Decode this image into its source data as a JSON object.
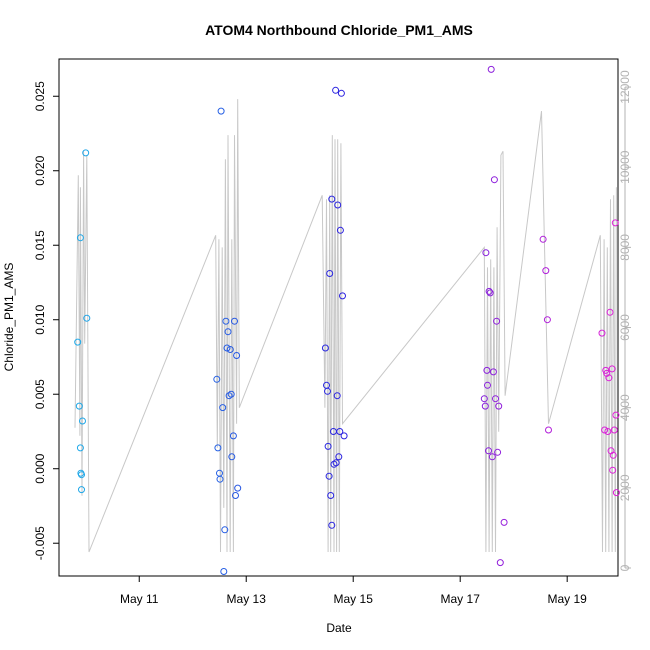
{
  "chart_data": {
    "type": "scatter",
    "title": "ATOM4 Northbound Chloride_PM1_AMS",
    "xlabel": "Date",
    "ylabel": "Chloride_PM1_AMS",
    "x_ticks": [
      "May 11",
      "May 13",
      "May 15",
      "May 17",
      "May 19"
    ],
    "x_tick_values": [
      11,
      13,
      15,
      17,
      19
    ],
    "xlim": [
      9.5,
      19.95
    ],
    "ylim": [
      -0.0072,
      0.0275
    ],
    "y_ticks": [
      -0.005,
      0.0,
      0.005,
      0.01,
      0.015,
      0.02,
      0.025
    ],
    "y_tick_labels": [
      "-0.005",
      "0.000",
      "0.005",
      "0.010",
      "0.015",
      "0.020",
      "0.025"
    ],
    "y2lim": [
      -200,
      12700
    ],
    "y2_ticks": [
      0,
      2000,
      4000,
      6000,
      8000,
      10000,
      12000
    ],
    "y2_tick_labels": [
      "0",
      "2000",
      "4000",
      "6000",
      "8000",
      "10000",
      "12000"
    ],
    "grid": false,
    "colors": {
      "line": "#c8c8c8",
      "right_axis": "#b3b3b3",
      "point_start": "#1ea9e8",
      "point_mid": "#2b1ee0",
      "point_end": "#e020d8"
    },
    "points": [
      [
        9.85,
        0.0085
      ],
      [
        9.88,
        0.0042
      ],
      [
        9.9,
        0.0155
      ],
      [
        9.9,
        0.0014
      ],
      [
        9.91,
        -0.0003
      ],
      [
        9.92,
        -0.0004
      ],
      [
        9.92,
        -0.0014
      ],
      [
        9.94,
        0.0032
      ],
      [
        10.0,
        0.0212
      ],
      [
        10.02,
        0.0101
      ],
      [
        12.45,
        0.006
      ],
      [
        12.47,
        0.0014
      ],
      [
        12.5,
        -0.0003
      ],
      [
        12.51,
        -0.0007
      ],
      [
        12.53,
        0.024
      ],
      [
        12.56,
        0.0041
      ],
      [
        12.58,
        -0.0069
      ],
      [
        12.6,
        -0.0041
      ],
      [
        12.62,
        0.0099
      ],
      [
        12.64,
        0.0081
      ],
      [
        12.66,
        0.0092
      ],
      [
        12.68,
        0.0049
      ],
      [
        12.7,
        0.008
      ],
      [
        12.72,
        0.005
      ],
      [
        12.73,
        0.0008
      ],
      [
        12.76,
        0.0022
      ],
      [
        12.78,
        0.0099
      ],
      [
        12.8,
        -0.0018
      ],
      [
        12.82,
        0.0076
      ],
      [
        12.84,
        -0.0013
      ],
      [
        14.48,
        0.0081
      ],
      [
        14.5,
        0.0056
      ],
      [
        14.52,
        0.0052
      ],
      [
        14.53,
        0.0015
      ],
      [
        14.55,
        -0.0005
      ],
      [
        14.56,
        0.0131
      ],
      [
        14.58,
        -0.0018
      ],
      [
        14.6,
        0.0181
      ],
      [
        14.6,
        -0.0038
      ],
      [
        14.63,
        0.0025
      ],
      [
        14.64,
        0.0003
      ],
      [
        14.67,
        0.0254
      ],
      [
        14.68,
        0.0004
      ],
      [
        14.7,
        0.0049
      ],
      [
        14.71,
        0.0177
      ],
      [
        14.73,
        0.0008
      ],
      [
        14.75,
        0.0025
      ],
      [
        14.76,
        0.016
      ],
      [
        14.78,
        0.0252
      ],
      [
        14.8,
        0.0116
      ],
      [
        14.83,
        0.0022
      ],
      [
        17.45,
        0.0047
      ],
      [
        17.47,
        0.0042
      ],
      [
        17.48,
        0.0145
      ],
      [
        17.5,
        0.0066
      ],
      [
        17.51,
        0.0056
      ],
      [
        17.53,
        0.0012
      ],
      [
        17.54,
        0.0119
      ],
      [
        17.56,
        0.0118
      ],
      [
        17.58,
        0.0268
      ],
      [
        17.6,
        0.0008
      ],
      [
        17.62,
        0.0065
      ],
      [
        17.64,
        0.0194
      ],
      [
        17.66,
        0.0047
      ],
      [
        17.68,
        0.0099
      ],
      [
        17.7,
        0.0011
      ],
      [
        17.72,
        0.0042
      ],
      [
        17.75,
        -0.0063
      ],
      [
        17.82,
        -0.0036
      ],
      [
        18.55,
        0.0154
      ],
      [
        18.6,
        0.0133
      ],
      [
        18.63,
        0.01
      ],
      [
        18.65,
        0.0026
      ],
      [
        19.65,
        0.0091
      ],
      [
        19.7,
        0.0026
      ],
      [
        19.72,
        0.0066
      ],
      [
        19.74,
        0.0064
      ],
      [
        19.76,
        0.0025
      ],
      [
        19.78,
        0.0061
      ],
      [
        19.8,
        0.0105
      ],
      [
        19.82,
        0.0012
      ],
      [
        19.84,
        0.0067
      ],
      [
        19.85,
        -0.0001
      ],
      [
        19.86,
        0.0009
      ],
      [
        19.88,
        0.0026
      ],
      [
        19.9,
        0.0165
      ],
      [
        19.91,
        0.0036
      ],
      [
        19.92,
        -0.0016
      ]
    ],
    "line_secondary": [
      [
        9.8,
        3500
      ],
      [
        9.86,
        9800
      ],
      [
        9.89,
        3300
      ],
      [
        9.9,
        9500
      ],
      [
        9.93,
        1800
      ],
      [
        9.96,
        10400
      ],
      [
        9.98,
        5600
      ],
      [
        10.02,
        10300
      ],
      [
        10.06,
        400
      ],
      [
        12.43,
        8300
      ],
      [
        12.46,
        3000
      ],
      [
        12.49,
        8200
      ],
      [
        12.52,
        400
      ],
      [
        12.55,
        8000
      ],
      [
        12.58,
        1500
      ],
      [
        12.61,
        10200
      ],
      [
        12.64,
        400
      ],
      [
        12.66,
        10800
      ],
      [
        12.7,
        400
      ],
      [
        12.73,
        8200
      ],
      [
        12.76,
        400
      ],
      [
        12.78,
        10800
      ],
      [
        12.82,
        3600
      ],
      [
        12.84,
        11700
      ],
      [
        12.87,
        4000
      ],
      [
        14.42,
        9300
      ],
      [
        14.47,
        4000
      ],
      [
        14.5,
        9200
      ],
      [
        14.53,
        400
      ],
      [
        14.56,
        9300
      ],
      [
        14.58,
        400
      ],
      [
        14.61,
        10800
      ],
      [
        14.64,
        400
      ],
      [
        14.66,
        10700
      ],
      [
        14.69,
        400
      ],
      [
        14.71,
        10700
      ],
      [
        14.74,
        400
      ],
      [
        14.77,
        10600
      ],
      [
        14.8,
        3600
      ],
      [
        17.45,
        8000
      ],
      [
        17.48,
        400
      ],
      [
        17.51,
        7500
      ],
      [
        17.54,
        400
      ],
      [
        17.57,
        7700
      ],
      [
        17.6,
        400
      ],
      [
        17.63,
        7500
      ],
      [
        17.66,
        400
      ],
      [
        17.69,
        8500
      ],
      [
        17.72,
        3400
      ],
      [
        17.76,
        10300
      ],
      [
        17.8,
        10400
      ],
      [
        17.84,
        4300
      ],
      [
        18.52,
        11400
      ],
      [
        18.65,
        3600
      ],
      [
        19.62,
        8300
      ],
      [
        19.66,
        400
      ],
      [
        19.69,
        8200
      ],
      [
        19.72,
        400
      ],
      [
        19.75,
        8000
      ],
      [
        19.78,
        400
      ],
      [
        19.81,
        9200
      ],
      [
        19.84,
        400
      ],
      [
        19.87,
        9300
      ],
      [
        19.9,
        400
      ],
      [
        19.92,
        9500
      ]
    ]
  }
}
